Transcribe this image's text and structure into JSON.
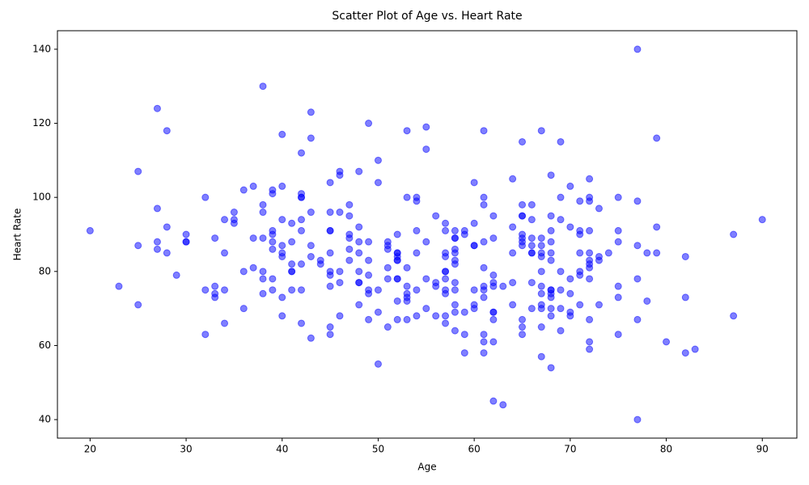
{
  "chart_data": {
    "type": "scatter",
    "title": "Scatter Plot of Age vs. Heart Rate",
    "x_label": "Age",
    "y_label": "Heart Rate",
    "color": "#0000ff",
    "grid": false,
    "xlim": [
      16.6,
      93.6
    ],
    "ylim": [
      35.0,
      145.0
    ],
    "xticks": [
      20,
      30,
      40,
      50,
      60,
      70,
      80,
      90
    ],
    "yticks": [
      40,
      60,
      80,
      100,
      120,
      140
    ],
    "x": [
      20,
      23,
      25,
      25,
      25,
      27,
      27,
      27,
      27,
      28,
      28,
      28,
      29,
      30,
      30,
      30,
      32,
      32,
      32,
      33,
      33,
      33,
      33,
      34,
      34,
      34,
      34,
      35,
      35,
      35,
      36,
      36,
      36,
      37,
      37,
      37,
      38,
      38,
      38,
      38,
      38,
      38,
      38,
      39,
      39,
      39,
      39,
      39,
      39,
      39,
      39,
      40,
      40,
      40,
      40,
      40,
      40,
      40,
      40,
      41,
      41,
      41,
      41,
      41,
      41,
      42,
      42,
      42,
      42,
      42,
      42,
      42,
      42,
      42,
      43,
      43,
      43,
      43,
      43,
      43,
      44,
      44,
      45,
      45,
      45,
      45,
      45,
      45,
      45,
      45,
      45,
      45,
      46,
      46,
      46,
      46,
      46,
      46,
      47,
      47,
      47,
      47,
      47,
      47,
      48,
      48,
      48,
      48,
      48,
      48,
      48,
      48,
      49,
      49,
      49,
      49,
      49,
      49,
      49,
      50,
      50,
      50,
      50,
      50,
      51,
      51,
      51,
      51,
      51,
      51,
      52,
      52,
      52,
      52,
      52,
      52,
      52,
      52,
      52,
      52,
      53,
      53,
      53,
      53,
      53,
      53,
      53,
      53,
      54,
      54,
      54,
      54,
      54,
      54,
      55,
      55,
      55,
      55,
      55,
      56,
      56,
      56,
      56,
      57,
      57,
      57,
      57,
      57,
      57,
      57,
      57,
      57,
      57,
      57,
      58,
      58,
      58,
      58,
      58,
      58,
      58,
      58,
      58,
      58,
      58,
      58,
      59,
      59,
      59,
      59,
      59,
      60,
      60,
      60,
      60,
      60,
      60,
      60,
      61,
      61,
      61,
      61,
      61,
      61,
      61,
      61,
      61,
      61,
      61,
      62,
      62,
      62,
      62,
      62,
      62,
      62,
      62,
      62,
      62,
      63,
      63,
      64,
      64,
      64,
      64,
      64,
      65,
      65,
      65,
      65,
      65,
      65,
      65,
      65,
      65,
      65,
      65,
      66,
      66,
      66,
      66,
      66,
      66,
      66,
      66,
      67,
      67,
      67,
      67,
      67,
      67,
      67,
      67,
      67,
      67,
      67,
      67,
      68,
      68,
      68,
      68,
      68,
      68,
      68,
      68,
      68,
      68,
      68,
      68,
      68,
      69,
      69,
      69,
      69,
      69,
      69,
      69,
      70,
      70,
      70,
      70,
      70,
      70,
      71,
      71,
      71,
      71,
      71,
      71,
      71,
      72,
      72,
      72,
      72,
      72,
      72,
      72,
      72,
      72,
      72,
      72,
      72,
      73,
      73,
      73,
      73,
      74,
      75,
      75,
      75,
      75,
      75,
      75,
      77,
      77,
      77,
      77,
      77,
      77,
      78,
      78,
      79,
      79,
      79,
      80,
      82,
      82,
      82,
      83,
      87,
      87,
      90
    ],
    "y": [
      91,
      76,
      107,
      87,
      71,
      124,
      97,
      88,
      86,
      118,
      92,
      85,
      79,
      90,
      88,
      88,
      100,
      75,
      63,
      89,
      76,
      74,
      73,
      94,
      85,
      75,
      66,
      96,
      94,
      93,
      102,
      80,
      70,
      103,
      89,
      81,
      130,
      98,
      96,
      89,
      80,
      78,
      74,
      102,
      101,
      91,
      90,
      88,
      86,
      78,
      75,
      117,
      103,
      94,
      87,
      85,
      84,
      73,
      68,
      93,
      88,
      82,
      80,
      80,
      75,
      112,
      101,
      100,
      100,
      94,
      91,
      82,
      75,
      66,
      123,
      116,
      96,
      87,
      84,
      62,
      83,
      82,
      104,
      96,
      91,
      91,
      85,
      80,
      79,
      76,
      65,
      63,
      107,
      106,
      96,
      80,
      77,
      68,
      98,
      95,
      90,
      89,
      86,
      83,
      107,
      92,
      88,
      85,
      80,
      77,
      77,
      71,
      120,
      88,
      83,
      79,
      75,
      74,
      67,
      110,
      104,
      75,
      69,
      55,
      88,
      87,
      86,
      81,
      78,
      65,
      90,
      85,
      85,
      84,
      83,
      83,
      78,
      78,
      72,
      67,
      118,
      100,
      81,
      76,
      74,
      73,
      72,
      67,
      100,
      99,
      91,
      85,
      75,
      68,
      119,
      113,
      88,
      78,
      70,
      95,
      77,
      76,
      68,
      93,
      91,
      85,
      84,
      80,
      80,
      78,
      75,
      74,
      68,
      66,
      91,
      89,
      89,
      86,
      85,
      83,
      82,
      77,
      75,
      71,
      69,
      64,
      91,
      90,
      69,
      63,
      58,
      104,
      93,
      87,
      87,
      75,
      71,
      70,
      118,
      100,
      98,
      88,
      81,
      76,
      75,
      73,
      63,
      61,
      58,
      95,
      89,
      79,
      77,
      76,
      69,
      69,
      67,
      61,
      45,
      76,
      44,
      105,
      92,
      85,
      77,
      71,
      115,
      98,
      95,
      95,
      90,
      89,
      88,
      87,
      67,
      65,
      63,
      98,
      94,
      89,
      87,
      85,
      85,
      77,
      70,
      118,
      89,
      87,
      85,
      84,
      80,
      76,
      74,
      71,
      70,
      65,
      57,
      106,
      95,
      91,
      88,
      85,
      83,
      75,
      75,
      74,
      73,
      70,
      68,
      54,
      115,
      100,
      94,
      80,
      75,
      70,
      64,
      103,
      92,
      78,
      74,
      69,
      68,
      99,
      91,
      90,
      85,
      80,
      79,
      71,
      105,
      100,
      99,
      91,
      85,
      83,
      82,
      81,
      78,
      67,
      61,
      59,
      97,
      84,
      83,
      71,
      85,
      100,
      91,
      88,
      76,
      73,
      63,
      140,
      99,
      87,
      78,
      67,
      40,
      85,
      72,
      116,
      92,
      85,
      61,
      84,
      73,
      58,
      59,
      90,
      68,
      94
    ]
  }
}
